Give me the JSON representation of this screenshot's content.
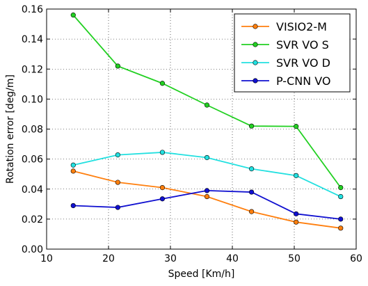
{
  "chart_data": {
    "type": "line",
    "title": "",
    "xlabel": "Speed [Km/h]",
    "ylabel": "Rotation error [deg/m]",
    "xlim": [
      10,
      60
    ],
    "ylim": [
      0,
      0.16
    ],
    "xticks": [
      10,
      20,
      30,
      40,
      50,
      60
    ],
    "xtick_labels": [
      "10",
      "20",
      "30",
      "40",
      "50",
      "60"
    ],
    "yticks": [
      0,
      0.02,
      0.04,
      0.06,
      0.08,
      0.1,
      0.12,
      0.14,
      0.16
    ],
    "ytick_labels": [
      "0.00",
      "0.02",
      "0.04",
      "0.06",
      "0.08",
      "0.10",
      "0.12",
      "0.14",
      "0.16"
    ],
    "grid": true,
    "legend_position": "top-right",
    "x": [
      14.3,
      21.5,
      28.7,
      35.9,
      43.1,
      50.3,
      57.5
    ],
    "series": [
      {
        "name": "VISIO2-M",
        "color": "#ff7f0e",
        "values": [
          0.052,
          0.0445,
          0.041,
          0.035,
          0.025,
          0.018,
          0.014
        ]
      },
      {
        "name": "SVR VO S",
        "color": "#22d022",
        "values": [
          0.156,
          0.122,
          0.1105,
          0.096,
          0.082,
          0.0818,
          0.041
        ]
      },
      {
        "name": "SVR VO D",
        "color": "#22e0e0",
        "values": [
          0.056,
          0.0628,
          0.0645,
          0.061,
          0.0535,
          0.049,
          0.035
        ]
      },
      {
        "name": "P-CNN VO",
        "color": "#1010d0",
        "values": [
          0.029,
          0.0278,
          0.0335,
          0.039,
          0.038,
          0.0235,
          0.02
        ]
      }
    ]
  }
}
